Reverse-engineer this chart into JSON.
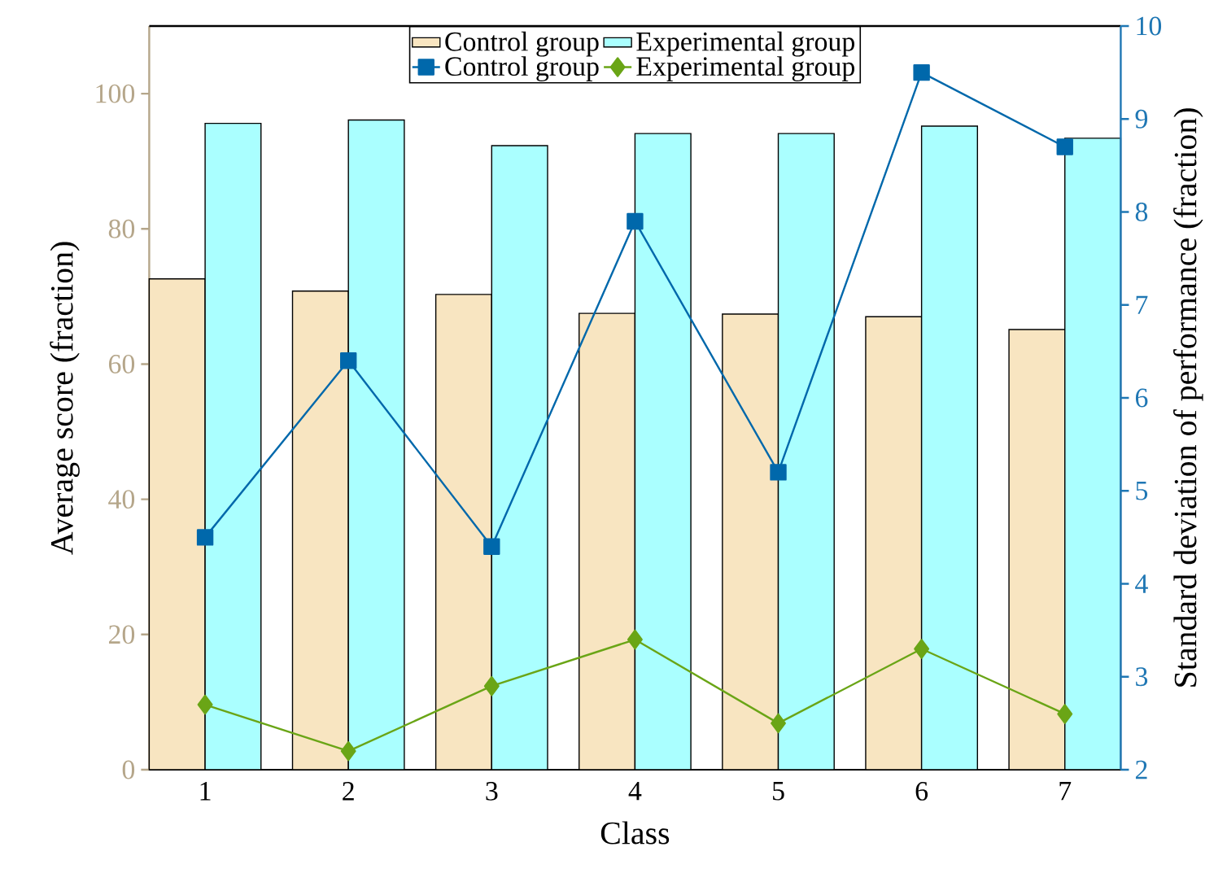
{
  "chart_data": {
    "type": "bar",
    "xlabel": "Class",
    "ylabel": "Average score (fraction)",
    "y2label": "Standard deviation of performance (fraction)",
    "categories": [
      "1",
      "2",
      "3",
      "4",
      "5",
      "6",
      "7"
    ],
    "series": [
      {
        "name": "Control group",
        "color": "#f8e5c1",
        "values": [
          72.6,
          70.8,
          70.3,
          67.5,
          67.4,
          67.0,
          65.1
        ]
      },
      {
        "name": "Experimental group",
        "color": "#aaffff",
        "values": [
          95.6,
          96.1,
          92.3,
          94.1,
          94.1,
          95.2,
          93.4
        ]
      },
      {
        "name": "Control group",
        "type": "line",
        "axis": "y2",
        "color": "#0068ab",
        "marker": "square",
        "values": [
          4.5,
          6.4,
          4.4,
          7.9,
          5.2,
          9.5,
          8.7
        ]
      },
      {
        "name": "Experimental group",
        "type": "line",
        "axis": "y2",
        "color": "#6aa516",
        "marker": "diamond",
        "values": [
          2.7,
          2.2,
          2.9,
          3.4,
          2.5,
          3.3,
          2.6
        ]
      }
    ],
    "ylim": [
      0,
      110
    ],
    "yticks": [
      0,
      20,
      40,
      60,
      80,
      100
    ],
    "y2lim": [
      2,
      10
    ],
    "y2ticks": [
      2,
      3,
      4,
      5,
      6,
      7,
      8,
      9,
      10
    ],
    "grid": false,
    "legend": "top"
  }
}
